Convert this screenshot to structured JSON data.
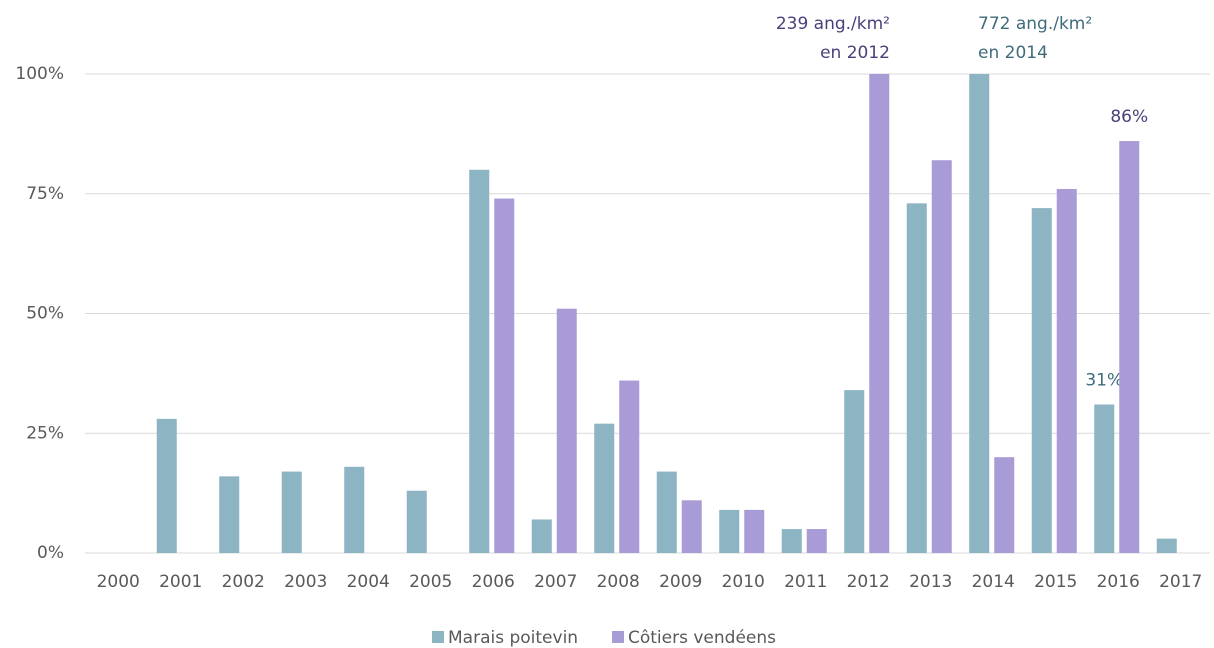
{
  "chart_data": {
    "type": "bar",
    "categories": [
      "2000",
      "2001",
      "2002",
      "2003",
      "2004",
      "2005",
      "2006",
      "2007",
      "2008",
      "2009",
      "2010",
      "2011",
      "2012",
      "2013",
      "2014",
      "2015",
      "2016",
      "2017"
    ],
    "series": [
      {
        "name": "Marais poitevin",
        "color": "#8cb4c2",
        "label_color": "#3f6b7a",
        "values": [
          null,
          28,
          16,
          17,
          18,
          13,
          80,
          7,
          27,
          17,
          9,
          5,
          34,
          73,
          100,
          72,
          31,
          3
        ],
        "value_labels": [
          null,
          null,
          null,
          null,
          null,
          null,
          null,
          null,
          null,
          null,
          null,
          null,
          null,
          null,
          null,
          null,
          "31%",
          null
        ]
      },
      {
        "name": "Côtiers vendéens",
        "color": "#a89bd6",
        "label_color": "#4a3f7a",
        "values": [
          null,
          null,
          null,
          null,
          null,
          null,
          74,
          51,
          36,
          11,
          9,
          5,
          100,
          82,
          20,
          76,
          86,
          null
        ],
        "value_labels": [
          null,
          null,
          null,
          null,
          null,
          null,
          null,
          null,
          null,
          null,
          null,
          null,
          null,
          null,
          null,
          null,
          "86%",
          null
        ]
      }
    ],
    "annotations": [
      {
        "lines": [
          "239 ang./km²",
          "en 2012"
        ],
        "color": "#4a3f7a"
      },
      {
        "lines": [
          "772 ang./km²",
          "en 2014"
        ],
        "color": "#3f6b7a"
      }
    ],
    "ylim": [
      0,
      100
    ],
    "yticks": [
      {
        "value": 0,
        "label": "0%"
      },
      {
        "value": 25,
        "label": "25%"
      },
      {
        "value": 50,
        "label": "50%"
      },
      {
        "value": 75,
        "label": "75%"
      },
      {
        "value": 100,
        "label": "100%"
      }
    ],
    "grid": true,
    "legend": "bottom"
  }
}
